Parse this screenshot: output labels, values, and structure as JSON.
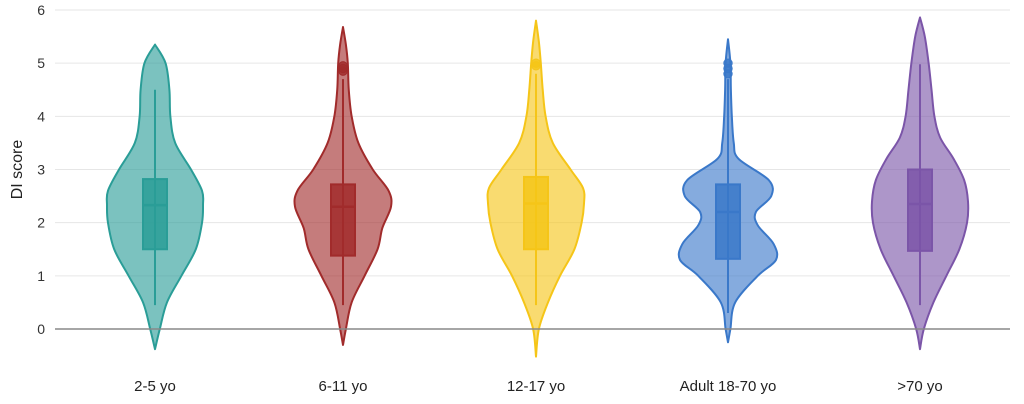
{
  "chart_data": {
    "type": "violin",
    "title": "",
    "xlabel": "",
    "ylabel": "DI score",
    "ylim": [
      0,
      6
    ],
    "y_ticks": [
      0,
      1,
      2,
      3,
      4,
      5,
      6
    ],
    "y_tick_labels": [
      "0",
      "1",
      "2",
      "3",
      "4",
      "5",
      "6"
    ],
    "grid": "horizontal",
    "legend": "none",
    "categories": [
      "2-5 yo",
      "6-11 yo",
      "12-17 yo",
      "Adult 18-70 yo",
      ">70 yo"
    ],
    "series": [
      {
        "category": "2-5 yo",
        "color": "#2a9d97",
        "box": {
          "whisker_low": 0.45,
          "q1": 1.5,
          "median": 2.33,
          "q3": 2.82,
          "whisker_high": 4.5
        },
        "outliers": [],
        "violin": {
          "y": [
            -0.38,
            0.0,
            0.5,
            1.0,
            1.5,
            2.0,
            2.33,
            2.6,
            3.0,
            3.5,
            4.0,
            4.5,
            5.0,
            5.35
          ],
          "width": [
            0.0,
            0.1,
            0.25,
            0.55,
            0.85,
            0.98,
            1.0,
            0.98,
            0.75,
            0.42,
            0.32,
            0.3,
            0.22,
            0.0
          ]
        }
      },
      {
        "category": "6-11 yo",
        "color": "#a12b2b",
        "box": {
          "whisker_low": 0.45,
          "q1": 1.38,
          "median": 2.3,
          "q3": 2.72,
          "whisker_high": 4.7
        },
        "outliers": [
          4.85,
          4.9,
          4.95
        ],
        "violin": {
          "y": [
            -0.3,
            0.0,
            0.5,
            1.0,
            1.5,
            1.9,
            2.3,
            2.6,
            3.0,
            3.5,
            4.0,
            4.5,
            5.0,
            5.35,
            5.68
          ],
          "width": [
            0.0,
            0.06,
            0.18,
            0.45,
            0.72,
            0.82,
            1.0,
            0.95,
            0.62,
            0.32,
            0.18,
            0.12,
            0.1,
            0.06,
            0.0
          ]
        }
      },
      {
        "category": "12-17 yo",
        "color": "#f5c518",
        "box": {
          "whisker_low": 0.45,
          "q1": 1.5,
          "median": 2.36,
          "q3": 2.86,
          "whisker_high": 4.8
        },
        "outliers": [
          4.95,
          5.0
        ],
        "violin": {
          "y": [
            -0.52,
            0.0,
            0.5,
            1.0,
            1.5,
            2.0,
            2.36,
            2.65,
            3.0,
            3.5,
            4.0,
            4.5,
            5.0,
            5.4,
            5.8
          ],
          "width": [
            0.0,
            0.06,
            0.25,
            0.5,
            0.8,
            0.95,
            1.0,
            0.98,
            0.72,
            0.35,
            0.2,
            0.14,
            0.1,
            0.06,
            0.0
          ]
        }
      },
      {
        "category": "Adult 18-70 yo",
        "color": "#3a78c9",
        "box": {
          "whisker_low": 0.3,
          "q1": 1.32,
          "median": 2.2,
          "q3": 2.72,
          "whisker_high": 4.7
        },
        "outliers": [
          4.8,
          4.9,
          5.0
        ],
        "violin": {
          "y": [
            -0.25,
            0.0,
            0.5,
            1.0,
            1.3,
            1.6,
            1.95,
            2.2,
            2.5,
            2.8,
            3.2,
            3.5,
            4.0,
            4.5,
            5.0,
            5.45
          ],
          "width": [
            0.0,
            0.05,
            0.15,
            0.62,
            1.0,
            0.95,
            0.62,
            0.58,
            0.9,
            0.85,
            0.22,
            0.12,
            0.08,
            0.06,
            0.05,
            0.0
          ]
        }
      },
      {
        "category": ">70 yo",
        "color": "#7b55a8",
        "box": {
          "whisker_low": 0.45,
          "q1": 1.47,
          "median": 2.35,
          "q3": 3.0,
          "whisker_high": 4.98
        },
        "outliers": [],
        "violin": {
          "y": [
            -0.38,
            0.0,
            0.5,
            1.0,
            1.5,
            2.0,
            2.4,
            2.8,
            3.2,
            3.6,
            4.0,
            4.5,
            5.0,
            5.5,
            5.86
          ],
          "width": [
            0.0,
            0.08,
            0.28,
            0.55,
            0.82,
            0.98,
            1.0,
            0.92,
            0.7,
            0.42,
            0.3,
            0.24,
            0.18,
            0.1,
            0.0
          ]
        }
      }
    ]
  }
}
